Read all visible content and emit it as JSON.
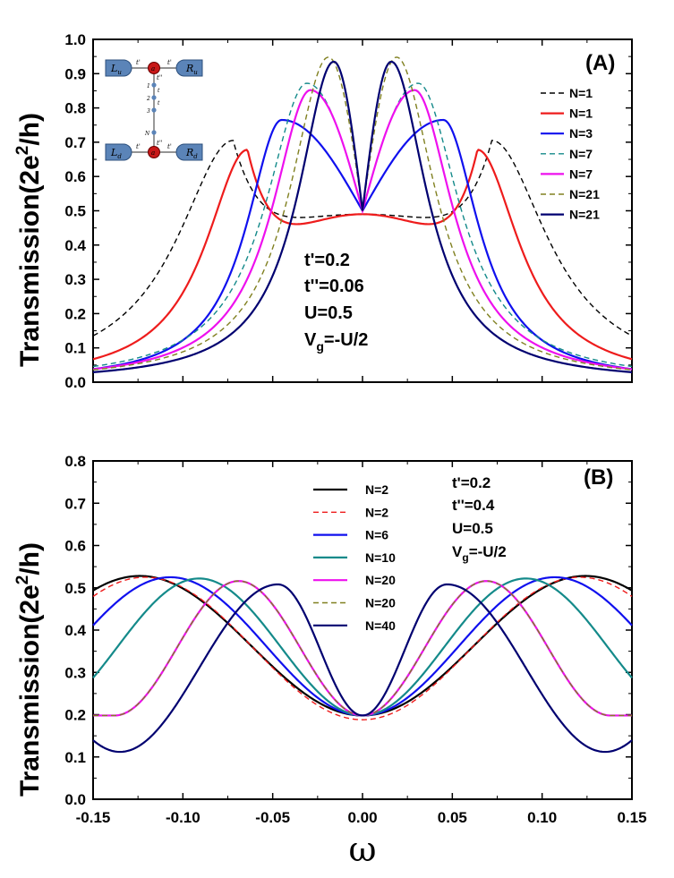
{
  "chart_data": [
    {
      "panel": "(A)",
      "type": "line",
      "ylabel": "Transmission(2e2/h)",
      "ylabel_main": "Transmission(2e",
      "ylabel_sup": "2",
      "ylabel_tail": "/h)",
      "xlim": [
        -0.15,
        0.15
      ],
      "ylim": [
        0.0,
        1.0
      ],
      "yticks": [
        "0.0",
        "0.1",
        "0.2",
        "0.3",
        "0.4",
        "0.5",
        "0.6",
        "0.7",
        "0.8",
        "0.9",
        "1.0"
      ],
      "params": [
        "t'=0.2",
        "t''=0.06",
        "U=0.5"
      ],
      "param_vg": {
        "main": "V",
        "sub": "g",
        "tail": "=-U/2"
      },
      "series": [
        {
          "name": "N=1",
          "color": "#000000",
          "dash": "dashed",
          "x0": 0.072,
          "peak": 0.705,
          "w": 0.04,
          "center": 0.49,
          "dipx": 0.03,
          "dip": 0.47
        },
        {
          "name": "N=1",
          "color": "#ee1c1c",
          "dash": "solid",
          "x0": 0.064,
          "peak": 0.678,
          "w": 0.03,
          "center": 0.49,
          "dipx": 0.03,
          "dip": 0.435
        },
        {
          "name": "N=3",
          "color": "#1010ee",
          "dash": "solid",
          "x0": 0.045,
          "peak": 0.765,
          "w": 0.024,
          "center": 0.5
        },
        {
          "name": "N=7",
          "color": "#148a8a",
          "dash": "dashed",
          "x0": 0.031,
          "peak": 0.872,
          "w": 0.028,
          "center": 0.5
        },
        {
          "name": "N=7",
          "color": "#ee10ee",
          "dash": "solid",
          "x0": 0.029,
          "peak": 0.852,
          "w": 0.026,
          "center": 0.5
        },
        {
          "name": "N=21",
          "color": "#808020",
          "dash": "dashed",
          "x0": 0.019,
          "peak": 0.948,
          "w": 0.026,
          "center": 0.5
        },
        {
          "name": "N=21",
          "color": "#000070",
          "dash": "solid",
          "x0": 0.016,
          "peak": 0.935,
          "w": 0.024,
          "center": 0.5
        }
      ],
      "inset": {
        "Lu": "L",
        "Lu_sub": "u",
        "Ru": "R",
        "Ru_sub": "u",
        "Ld": "L",
        "Ld_sub": "d",
        "Rd": "R",
        "Rd_sub": "d",
        "dot": "a",
        "hop": "t'",
        "hop2": "t''",
        "chain": [
          "1",
          "2",
          "3",
          "N"
        ],
        "t": "t"
      }
    },
    {
      "panel": "(B)",
      "type": "line",
      "xlabel": "ω",
      "ylabel": "Transmission(2e2/h)",
      "ylabel_main": "Transmission(2e",
      "ylabel_sup": "2",
      "ylabel_tail": "/h)",
      "xlim": [
        -0.15,
        0.15
      ],
      "ylim": [
        0.0,
        0.8
      ],
      "xticks": [
        "-0.15",
        "-0.10",
        "-0.05",
        "0.00",
        "0.05",
        "0.10",
        "0.15"
      ],
      "yticks": [
        "0.0",
        "0.1",
        "0.2",
        "0.3",
        "0.4",
        "0.5",
        "0.6",
        "0.7",
        "0.8"
      ],
      "params": [
        "t'=0.2",
        "t''=0.4",
        "U=0.5"
      ],
      "param_vg": {
        "main": "V",
        "sub": "g",
        "tail": "=-U/2"
      },
      "series": [
        {
          "name": "N=2",
          "color": "#000000",
          "dash": "solid",
          "kind": "wave",
          "x0": 0.124,
          "peak": 0.528,
          "center": 0.198
        },
        {
          "name": "N=2",
          "color": "#ee1c1c",
          "dash": "dashed",
          "kind": "wave",
          "x0": 0.121,
          "peak": 0.525,
          "center": 0.188
        },
        {
          "name": "N=6",
          "color": "#1010ee",
          "dash": "solid",
          "kind": "wave",
          "x0": 0.107,
          "peak": 0.525,
          "center": 0.198
        },
        {
          "name": "N=10",
          "color": "#148a8a",
          "dash": "solid",
          "kind": "wave",
          "x0": 0.091,
          "peak": 0.522,
          "center": 0.198
        },
        {
          "name": "N=20",
          "color": "#ee10ee",
          "dash": "solid",
          "kind": "wave",
          "x0": 0.069,
          "peak": 0.516,
          "center": 0.198
        },
        {
          "name": "N=20",
          "color": "#808020",
          "dash": "dashed",
          "kind": "wave",
          "x0": 0.069,
          "peak": 0.516,
          "center": 0.198
        },
        {
          "name": "N=40",
          "color": "#000070",
          "dash": "solid",
          "kind": "osc",
          "x0": 0.047,
          "peak": 0.508,
          "center": 0.198,
          "trough": 0.112
        }
      ]
    }
  ]
}
